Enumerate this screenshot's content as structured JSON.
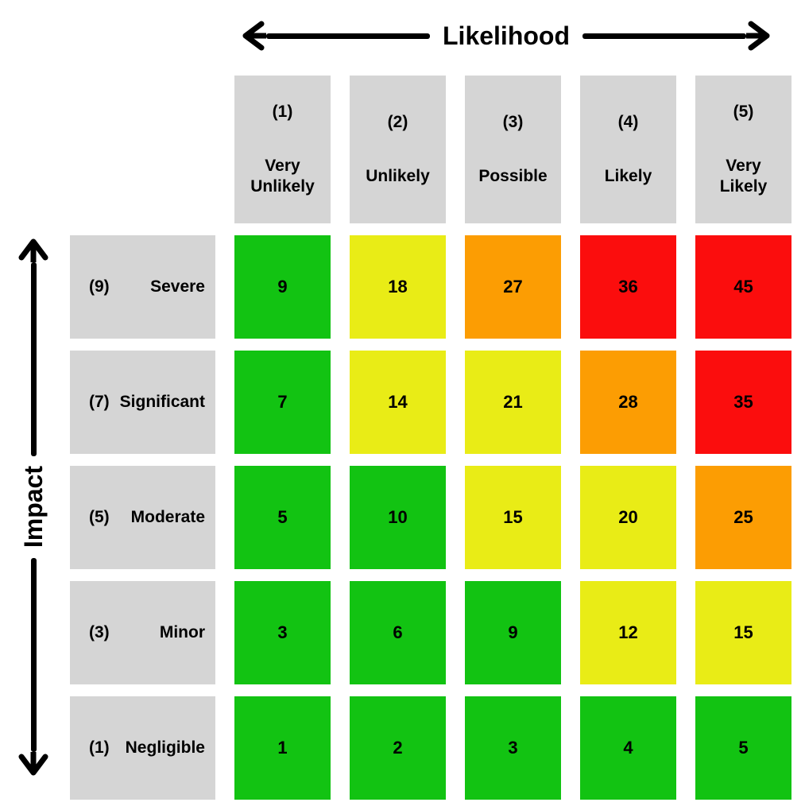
{
  "axes": {
    "likelihood_label": "Likelihood",
    "impact_label": "Impact"
  },
  "colors": {
    "green": "#12C312",
    "yellow": "#E9EC16",
    "orange": "#FC9D03",
    "red": "#FB0D0D",
    "header_bg": "#D5D5D5",
    "text": "#000000",
    "axis": "#000000"
  },
  "likelihood_levels": [
    {
      "rank": "(1)",
      "label": "Very Unlikely"
    },
    {
      "rank": "(2)",
      "label": "Unlikely"
    },
    {
      "rank": "(3)",
      "label": "Possible"
    },
    {
      "rank": "(4)",
      "label": "Likely"
    },
    {
      "rank": "(5)",
      "label": "Very Likely"
    }
  ],
  "matrix": {
    "rows": [
      {
        "rank": "(9)",
        "label": "Severe",
        "cells": [
          {
            "value": "9",
            "risk": "green"
          },
          {
            "value": "18",
            "risk": "yellow"
          },
          {
            "value": "27",
            "risk": "orange"
          },
          {
            "value": "36",
            "risk": "red"
          },
          {
            "value": "45",
            "risk": "red"
          }
        ]
      },
      {
        "rank": "(7)",
        "label": "Significant",
        "cells": [
          {
            "value": "7",
            "risk": "green"
          },
          {
            "value": "14",
            "risk": "yellow"
          },
          {
            "value": "21",
            "risk": "yellow"
          },
          {
            "value": "28",
            "risk": "orange"
          },
          {
            "value": "35",
            "risk": "red"
          }
        ]
      },
      {
        "rank": "(5)",
        "label": "Moderate",
        "cells": [
          {
            "value": "5",
            "risk": "green"
          },
          {
            "value": "10",
            "risk": "green"
          },
          {
            "value": "15",
            "risk": "yellow"
          },
          {
            "value": "20",
            "risk": "yellow"
          },
          {
            "value": "25",
            "risk": "orange"
          }
        ]
      },
      {
        "rank": "(3)",
        "label": "Minor",
        "cells": [
          {
            "value": "3",
            "risk": "green"
          },
          {
            "value": "6",
            "risk": "green"
          },
          {
            "value": "9",
            "risk": "green"
          },
          {
            "value": "12",
            "risk": "yellow"
          },
          {
            "value": "15",
            "risk": "yellow"
          }
        ]
      },
      {
        "rank": "(1)",
        "label": "Negligible",
        "cells": [
          {
            "value": "1",
            "risk": "green"
          },
          {
            "value": "2",
            "risk": "green"
          },
          {
            "value": "3",
            "risk": "green"
          },
          {
            "value": "4",
            "risk": "green"
          },
          {
            "value": "5",
            "risk": "green"
          }
        ]
      }
    ]
  },
  "chart_data": {
    "type": "heatmap",
    "title": "",
    "xlabel": "Likelihood",
    "ylabel": "Impact",
    "x_categories": [
      "(1) Very Unlikely",
      "(2) Unlikely",
      "(3) Possible",
      "(4) Likely",
      "(5) Very Likely"
    ],
    "y_categories": [
      "(9) Severe",
      "(7) Significant",
      "(5) Moderate",
      "(3) Minor",
      "(1) Negligible"
    ],
    "likelihood_weights": [
      1,
      2,
      3,
      4,
      5
    ],
    "impact_weights": [
      9,
      7,
      5,
      3,
      1
    ],
    "values": [
      [
        9,
        18,
        27,
        36,
        45
      ],
      [
        7,
        14,
        21,
        28,
        35
      ],
      [
        5,
        10,
        15,
        20,
        25
      ],
      [
        3,
        6,
        9,
        12,
        15
      ],
      [
        1,
        2,
        3,
        4,
        5
      ]
    ],
    "cell_risk_levels": [
      [
        "green",
        "yellow",
        "orange",
        "red",
        "red"
      ],
      [
        "green",
        "yellow",
        "yellow",
        "orange",
        "red"
      ],
      [
        "green",
        "green",
        "yellow",
        "yellow",
        "orange"
      ],
      [
        "green",
        "green",
        "green",
        "yellow",
        "yellow"
      ],
      [
        "green",
        "green",
        "green",
        "green",
        "green"
      ]
    ],
    "risk_colors": {
      "green": "#12C312",
      "yellow": "#E9EC16",
      "orange": "#FC9D03",
      "red": "#FB0D0D"
    },
    "legend": "none",
    "grid": false
  }
}
